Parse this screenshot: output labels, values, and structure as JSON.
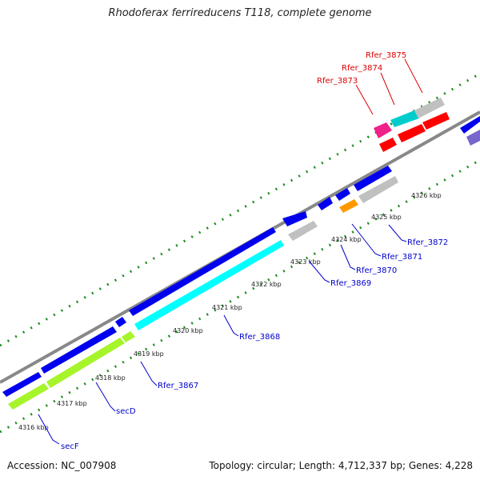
{
  "title": "Rhodoferax ferrireducens T118, complete genome",
  "footer": {
    "accession": "Accession: NC_007908",
    "stats": "Topology: circular; Length: 4,712,337 bp; Genes: 4,228"
  },
  "colors": {
    "backbone": "#888888",
    "tick": "#1e8c1e",
    "cds": "#0000ee",
    "cds_highlight": "#00ffff",
    "secretion": "#a6f52a",
    "pseudo": "#c0c0c0",
    "rna": "#ff0000",
    "regulator": "#ff9900",
    "magenta": "#ee2288",
    "purple": "#7766cc",
    "label_blue": "#0000cc",
    "label_red": "#dd0000"
  },
  "kbp_labels": [
    "4316 kbp",
    "4317 kbp",
    "4318 kbp",
    "4319 kbp",
    "4320 kbp",
    "4321 kbp",
    "4322 kbp",
    "4323 kbp",
    "4324 kbp",
    "4325 kbp",
    "4326 kbp"
  ],
  "gene_labels": [
    "secF",
    "secD",
    "Rfer_3867",
    "Rfer_3868",
    "Rfer_3869",
    "Rfer_3870",
    "Rfer_3871",
    "Rfer_3872",
    "Rfer_3873",
    "Rfer_3874",
    "Rfer_3875"
  ]
}
